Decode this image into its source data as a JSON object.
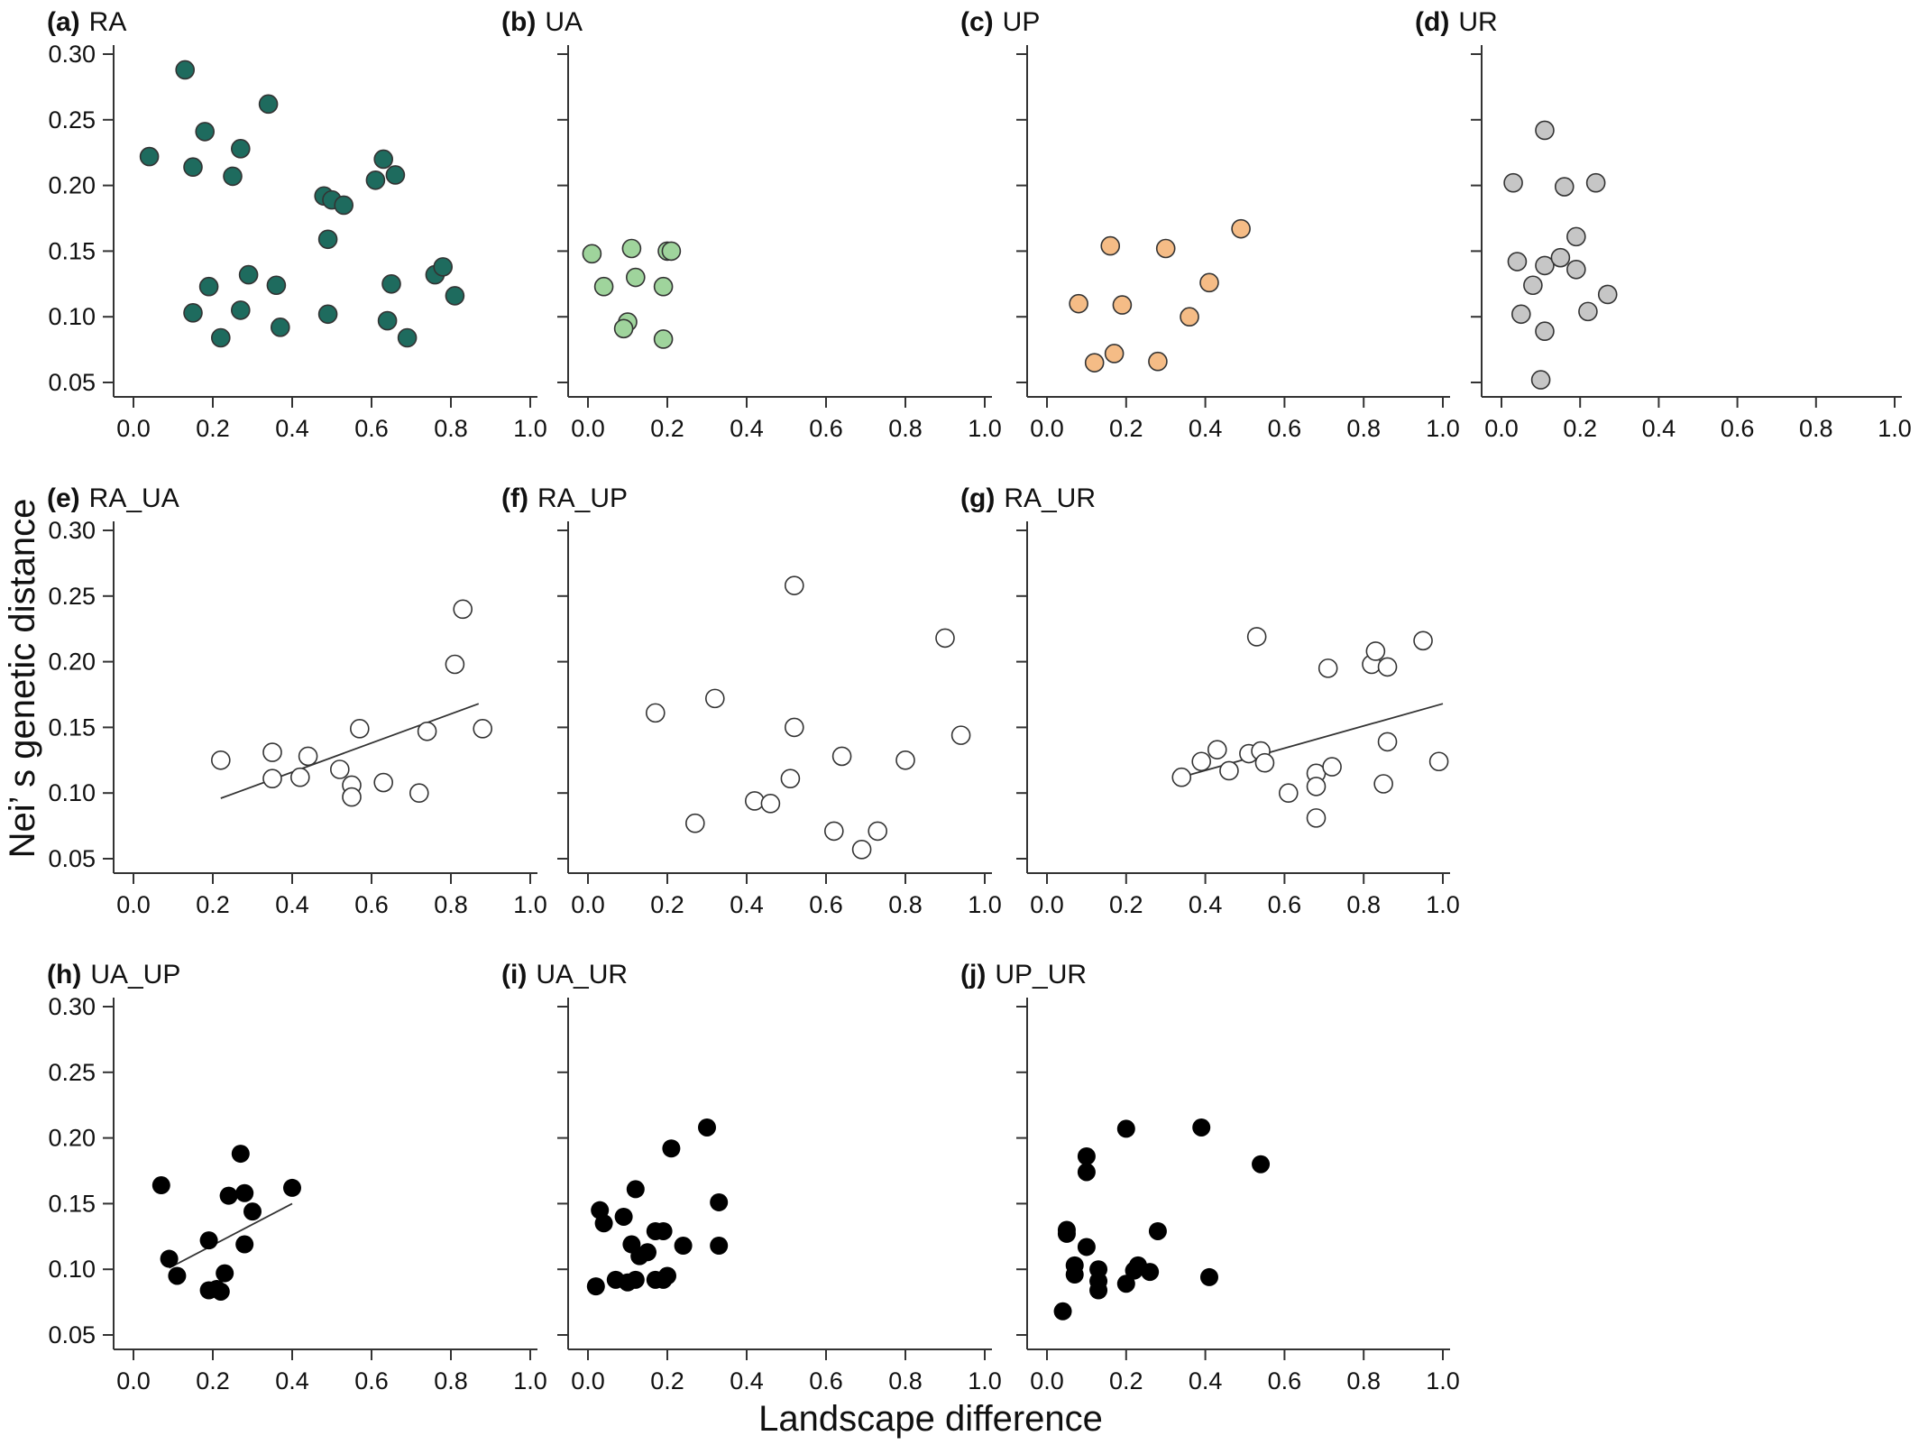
{
  "ylabel": "Nei’ s genetic distance",
  "xlabel": "Landscape difference",
  "xticks": [
    "0.0",
    "0.2",
    "0.4",
    "0.6",
    "0.8",
    "1.0"
  ],
  "yticks": [
    "0.05",
    "0.10",
    "0.15",
    "0.20",
    "0.25",
    "0.30"
  ],
  "colors": {
    "RA": "#1e6b5e",
    "UA": "#9fd49c",
    "UP": "#f5bc86",
    "UR": "#c6c6c6",
    "open": "#ffffff",
    "black": "#000000",
    "fit_line": "#333333"
  },
  "chart_data": [
    {
      "type": "scatter",
      "letter": "(a)",
      "name": "RA",
      "marker": "RA",
      "xlim": [
        0,
        1
      ],
      "ylim": [
        0.05,
        0.3
      ],
      "points": [
        [
          0.04,
          0.222
        ],
        [
          0.13,
          0.288
        ],
        [
          0.15,
          0.214
        ],
        [
          0.18,
          0.241
        ],
        [
          0.25,
          0.207
        ],
        [
          0.27,
          0.228
        ],
        [
          0.34,
          0.262
        ],
        [
          0.48,
          0.192
        ],
        [
          0.5,
          0.189
        ],
        [
          0.53,
          0.185
        ],
        [
          0.49,
          0.159
        ],
        [
          0.61,
          0.204
        ],
        [
          0.63,
          0.22
        ],
        [
          0.66,
          0.208
        ],
        [
          0.15,
          0.103
        ],
        [
          0.19,
          0.123
        ],
        [
          0.22,
          0.084
        ],
        [
          0.27,
          0.105
        ],
        [
          0.29,
          0.132
        ],
        [
          0.36,
          0.124
        ],
        [
          0.37,
          0.092
        ],
        [
          0.49,
          0.102
        ],
        [
          0.64,
          0.097
        ],
        [
          0.65,
          0.125
        ],
        [
          0.69,
          0.084
        ],
        [
          0.76,
          0.132
        ],
        [
          0.78,
          0.138
        ],
        [
          0.81,
          0.116
        ]
      ]
    },
    {
      "type": "scatter",
      "letter": "(b)",
      "name": "UA",
      "marker": "UA",
      "xlim": [
        0,
        1
      ],
      "ylim": [
        0.05,
        0.3
      ],
      "points": [
        [
          0.01,
          0.148
        ],
        [
          0.04,
          0.123
        ],
        [
          0.11,
          0.152
        ],
        [
          0.12,
          0.13
        ],
        [
          0.1,
          0.096
        ],
        [
          0.09,
          0.091
        ],
        [
          0.19,
          0.123
        ],
        [
          0.2,
          0.15
        ],
        [
          0.21,
          0.15
        ],
        [
          0.19,
          0.083
        ]
      ]
    },
    {
      "type": "scatter",
      "letter": "(c)",
      "name": "UP",
      "marker": "UP",
      "xlim": [
        0,
        1
      ],
      "ylim": [
        0.05,
        0.3
      ],
      "points": [
        [
          0.08,
          0.11
        ],
        [
          0.12,
          0.065
        ],
        [
          0.16,
          0.154
        ],
        [
          0.17,
          0.072
        ],
        [
          0.19,
          0.109
        ],
        [
          0.28,
          0.066
        ],
        [
          0.3,
          0.152
        ],
        [
          0.36,
          0.1
        ],
        [
          0.41,
          0.126
        ],
        [
          0.49,
          0.167
        ]
      ]
    },
    {
      "type": "scatter",
      "letter": "(d)",
      "name": "UR",
      "marker": "UR",
      "xlim": [
        0,
        1
      ],
      "ylim": [
        0.05,
        0.3
      ],
      "points": [
        [
          0.03,
          0.202
        ],
        [
          0.04,
          0.142
        ],
        [
          0.05,
          0.102
        ],
        [
          0.08,
          0.124
        ],
        [
          0.11,
          0.242
        ],
        [
          0.11,
          0.139
        ],
        [
          0.11,
          0.089
        ],
        [
          0.1,
          0.052
        ],
        [
          0.15,
          0.145
        ],
        [
          0.16,
          0.199
        ],
        [
          0.19,
          0.161
        ],
        [
          0.19,
          0.136
        ],
        [
          0.22,
          0.104
        ],
        [
          0.24,
          0.202
        ],
        [
          0.27,
          0.117
        ]
      ]
    },
    {
      "type": "scatter",
      "letter": "(e)",
      "name": "RA_UA",
      "marker": "open",
      "xlim": [
        0,
        1
      ],
      "ylim": [
        0.05,
        0.3
      ],
      "fit_line": [
        [
          0.22,
          0.096
        ],
        [
          0.87,
          0.168
        ]
      ],
      "points": [
        [
          0.22,
          0.125
        ],
        [
          0.35,
          0.111
        ],
        [
          0.35,
          0.131
        ],
        [
          0.42,
          0.112
        ],
        [
          0.44,
          0.128
        ],
        [
          0.52,
          0.118
        ],
        [
          0.55,
          0.106
        ],
        [
          0.55,
          0.097
        ],
        [
          0.57,
          0.149
        ],
        [
          0.63,
          0.108
        ],
        [
          0.72,
          0.1
        ],
        [
          0.74,
          0.147
        ],
        [
          0.81,
          0.198
        ],
        [
          0.83,
          0.24
        ],
        [
          0.88,
          0.149
        ]
      ]
    },
    {
      "type": "scatter",
      "letter": "(f)",
      "name": "RA_UP",
      "marker": "open",
      "xlim": [
        0,
        1
      ],
      "ylim": [
        0.05,
        0.3
      ],
      "points": [
        [
          0.17,
          0.161
        ],
        [
          0.27,
          0.077
        ],
        [
          0.32,
          0.172
        ],
        [
          0.42,
          0.094
        ],
        [
          0.46,
          0.092
        ],
        [
          0.51,
          0.111
        ],
        [
          0.52,
          0.15
        ],
        [
          0.52,
          0.258
        ],
        [
          0.62,
          0.071
        ],
        [
          0.64,
          0.128
        ],
        [
          0.69,
          0.057
        ],
        [
          0.73,
          0.071
        ],
        [
          0.8,
          0.125
        ],
        [
          0.9,
          0.218
        ],
        [
          0.94,
          0.144
        ]
      ]
    },
    {
      "type": "scatter",
      "letter": "(g)",
      "name": "RA_UR",
      "marker": "open",
      "xlim": [
        0,
        1
      ],
      "ylim": [
        0.05,
        0.3
      ],
      "fit_line": [
        [
          0.35,
          0.113
        ],
        [
          1.0,
          0.168
        ]
      ],
      "points": [
        [
          0.34,
          0.112
        ],
        [
          0.39,
          0.124
        ],
        [
          0.43,
          0.133
        ],
        [
          0.46,
          0.117
        ],
        [
          0.51,
          0.13
        ],
        [
          0.54,
          0.132
        ],
        [
          0.53,
          0.219
        ],
        [
          0.55,
          0.123
        ],
        [
          0.61,
          0.1
        ],
        [
          0.68,
          0.115
        ],
        [
          0.68,
          0.105
        ],
        [
          0.68,
          0.081
        ],
        [
          0.71,
          0.195
        ],
        [
          0.72,
          0.12
        ],
        [
          0.82,
          0.198
        ],
        [
          0.83,
          0.208
        ],
        [
          0.86,
          0.139
        ],
        [
          0.85,
          0.107
        ],
        [
          0.86,
          0.196
        ],
        [
          0.95,
          0.216
        ],
        [
          0.99,
          0.124
        ]
      ]
    },
    {
      "type": "scatter",
      "letter": "(h)",
      "name": "UA_UP",
      "marker": "black",
      "xlim": [
        0,
        1
      ],
      "ylim": [
        0.05,
        0.3
      ],
      "fit_line": [
        [
          0.09,
          0.101
        ],
        [
          0.4,
          0.15
        ]
      ],
      "points": [
        [
          0.07,
          0.164
        ],
        [
          0.09,
          0.108
        ],
        [
          0.11,
          0.095
        ],
        [
          0.19,
          0.122
        ],
        [
          0.19,
          0.084
        ],
        [
          0.21,
          0.085
        ],
        [
          0.22,
          0.083
        ],
        [
          0.23,
          0.097
        ],
        [
          0.24,
          0.156
        ],
        [
          0.27,
          0.188
        ],
        [
          0.28,
          0.119
        ],
        [
          0.28,
          0.158
        ],
        [
          0.3,
          0.144
        ],
        [
          0.4,
          0.162
        ]
      ]
    },
    {
      "type": "scatter",
      "letter": "(i)",
      "name": "UA_UR",
      "marker": "black",
      "xlim": [
        0,
        1
      ],
      "ylim": [
        0.05,
        0.3
      ],
      "points": [
        [
          0.02,
          0.087
        ],
        [
          0.03,
          0.145
        ],
        [
          0.04,
          0.135
        ],
        [
          0.07,
          0.092
        ],
        [
          0.09,
          0.14
        ],
        [
          0.1,
          0.09
        ],
        [
          0.11,
          0.119
        ],
        [
          0.12,
          0.092
        ],
        [
          0.12,
          0.161
        ],
        [
          0.13,
          0.11
        ],
        [
          0.15,
          0.113
        ],
        [
          0.17,
          0.092
        ],
        [
          0.17,
          0.129
        ],
        [
          0.19,
          0.092
        ],
        [
          0.19,
          0.129
        ],
        [
          0.2,
          0.095
        ],
        [
          0.21,
          0.192
        ],
        [
          0.24,
          0.118
        ],
        [
          0.3,
          0.208
        ],
        [
          0.33,
          0.118
        ],
        [
          0.33,
          0.151
        ]
      ]
    },
    {
      "type": "scatter",
      "letter": "(j)",
      "name": "UP_UR",
      "marker": "black",
      "xlim": [
        0,
        1
      ],
      "ylim": [
        0.05,
        0.3
      ],
      "points": [
        [
          0.04,
          0.068
        ],
        [
          0.05,
          0.13
        ],
        [
          0.05,
          0.127
        ],
        [
          0.07,
          0.103
        ],
        [
          0.07,
          0.096
        ],
        [
          0.1,
          0.117
        ],
        [
          0.1,
          0.174
        ],
        [
          0.1,
          0.186
        ],
        [
          0.13,
          0.1
        ],
        [
          0.13,
          0.091
        ],
        [
          0.13,
          0.084
        ],
        [
          0.2,
          0.089
        ],
        [
          0.2,
          0.207
        ],
        [
          0.22,
          0.099
        ],
        [
          0.23,
          0.103
        ],
        [
          0.26,
          0.098
        ],
        [
          0.28,
          0.129
        ],
        [
          0.39,
          0.208
        ],
        [
          0.41,
          0.094
        ],
        [
          0.54,
          0.18
        ]
      ]
    }
  ]
}
